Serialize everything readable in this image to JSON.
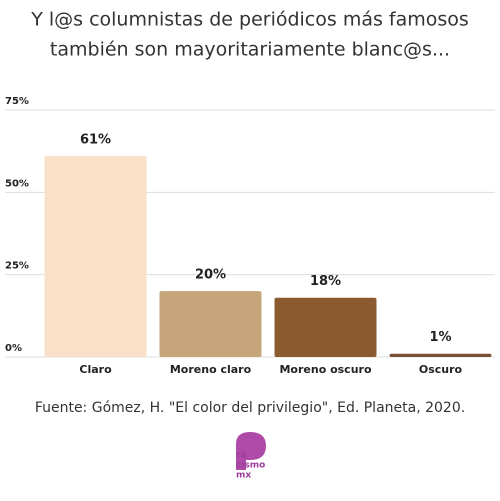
{
  "chart_data": {
    "type": "bar",
    "title": [
      "Y l@s columnistas de periódicos más famosos",
      "también son mayoritariamente blanc@s..."
    ],
    "categories": [
      "Claro",
      "Moreno claro",
      "Moreno oscuro",
      "Oscuro"
    ],
    "values": [
      61,
      20,
      18,
      1
    ],
    "value_labels": [
      "61%",
      "20%",
      "18%",
      "1%"
    ],
    "colors": [
      "#fae0c8",
      "#c6a57b",
      "#8b5a2f",
      "#7b4d34"
    ],
    "ylim": [
      0,
      75
    ],
    "yticks": [
      {
        "value": 0,
        "label": "0%"
      },
      {
        "value": 25,
        "label": "25%"
      },
      {
        "value": 50,
        "label": "50%"
      },
      {
        "value": 75,
        "label": "75%"
      }
    ],
    "grid": true,
    "source": "Fuente: Gómez, H. \"El color del privilegio\", Ed. Planeta, 2020.",
    "logo": [
      "ra",
      "cismo",
      "mx"
    ]
  }
}
